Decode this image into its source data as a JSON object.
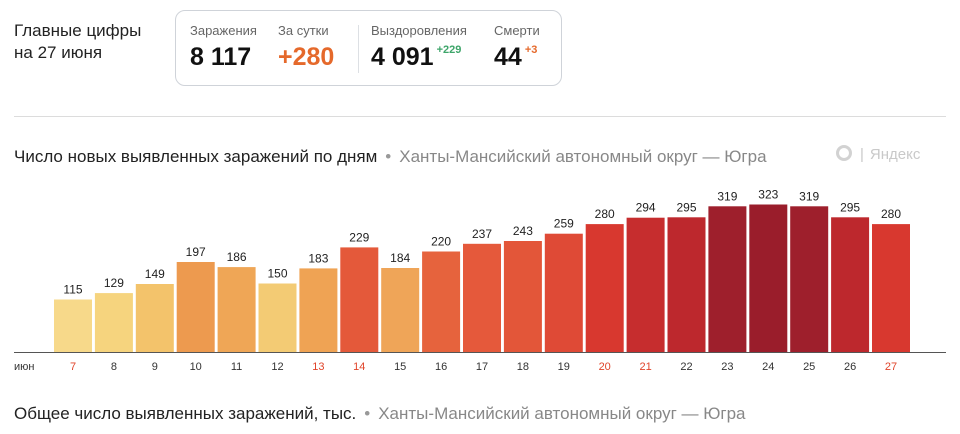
{
  "summary": {
    "title_line1": "Главные цифры",
    "title_line2": "на 27 июня"
  },
  "stats": {
    "infections_label": "Заражения",
    "infections_value": "8 117",
    "daily_label": "За сутки",
    "daily_value": "+280",
    "recovered_label": "Выздоровления",
    "recovered_value": "4 091",
    "recovered_increment": "+229",
    "deaths_label": "Смерти",
    "deaths_value": "44",
    "deaths_increment": "+3"
  },
  "chart_section": {
    "title": "Число новых выявленных заражений по дням",
    "separator": "•",
    "region": "Ханты-Мансийский автономный округ — Югра",
    "watermark": "Яндекс",
    "watermark_sep": "|"
  },
  "bottom_section": {
    "title": "Общее число выявленных заражений, тыс.",
    "separator": "•",
    "region": "Ханты-Мансийский автономный округ — Югра"
  },
  "colors": {
    "weekend_label": "#e0442a",
    "weekday_label": "#333333",
    "value_label": "#222222",
    "axis": "#555555"
  },
  "chart_data": {
    "type": "bar",
    "title": "Число новых выявленных заражений по дням",
    "month_label": "июн",
    "categories": [
      "7",
      "8",
      "9",
      "10",
      "11",
      "12",
      "13",
      "14",
      "15",
      "16",
      "17",
      "18",
      "19",
      "20",
      "21",
      "22",
      "23",
      "24",
      "25",
      "26",
      "27"
    ],
    "values": [
      115,
      129,
      149,
      197,
      186,
      150,
      183,
      229,
      184,
      220,
      237,
      243,
      259,
      280,
      294,
      295,
      319,
      323,
      319,
      295,
      280
    ],
    "bar_colors": [
      "#f7d98a",
      "#f6d47e",
      "#f3c36b",
      "#ed9a4f",
      "#efa656",
      "#f3cb74",
      "#efa354",
      "#e4593a",
      "#efa558",
      "#e6633d",
      "#e5593b",
      "#e35639",
      "#df4a36",
      "#d8382f",
      "#c62d2e",
      "#bd282d",
      "#9e1f2c",
      "#9a1d2b",
      "#9e1f2c",
      "#bd282d",
      "#d8382f"
    ],
    "weekend_categories": [
      "7",
      "13",
      "14",
      "20",
      "21",
      "27"
    ],
    "ylim": [
      0,
      340
    ],
    "grid": false,
    "data_labels": true
  }
}
